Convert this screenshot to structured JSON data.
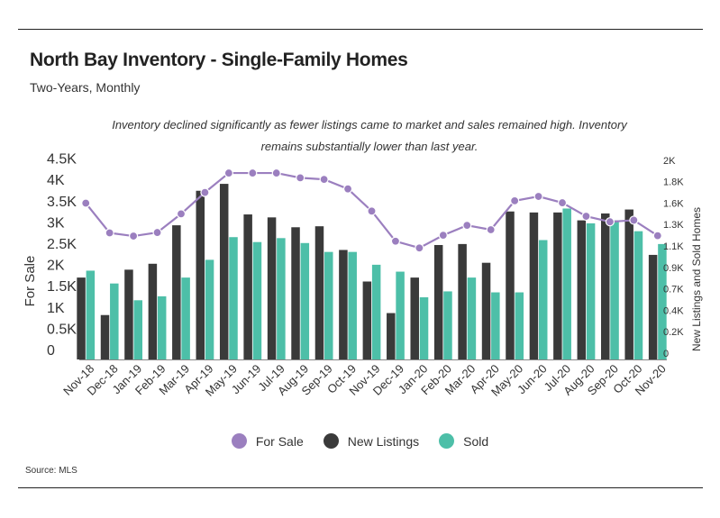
{
  "title": "North Bay Inventory - Single-Family Homes",
  "subtitle": "Two-Years, Monthly",
  "note": "Inventory declined significantly as fewer listings came to market and sales remained high. Inventory remains substantially lower than last year.",
  "source": "Source:  MLS",
  "colors": {
    "for_sale": "#9b7fbf",
    "new_listings": "#3a3a3a",
    "sold": "#4dbfa8"
  },
  "chart_data": {
    "type": "bar",
    "categories": [
      "Nov-18",
      "Dec-18",
      "Jan-19",
      "Feb-19",
      "Mar-19",
      "Apr-19",
      "May-19",
      "Jun-19",
      "Jul-19",
      "Aug-19",
      "Sep-19",
      "Oct-19",
      "Nov-19",
      "Dec-19",
      "Jan-20",
      "Feb-20",
      "Mar-20",
      "Apr-20",
      "May-20",
      "Jun-20",
      "Jul-20",
      "Aug-20",
      "Sep-20",
      "Oct-20",
      "Nov-20"
    ],
    "ylabel_left": "For Sale",
    "ylabel_right": "New Listings and Sold Homes",
    "yticks_left": [
      "0",
      "0.5K",
      "1K",
      "1.5K",
      "2K",
      "2.5K",
      "3K",
      "3.5K",
      "4K",
      "4.5K"
    ],
    "yticks_right": [
      "0",
      "0.2K",
      "0.4K",
      "0.7K",
      "0.9K",
      "1.1K",
      "1.3K",
      "1.6K",
      "1.8K",
      "2K"
    ],
    "ylim_left": [
      0,
      4500
    ],
    "ylim_right": [
      0,
      2000
    ],
    "legend_position": "bottom",
    "series": [
      {
        "name": "For Sale",
        "type": "line",
        "axis": "left",
        "values": [
          3670,
          2920,
          2840,
          2930,
          3400,
          3940,
          4430,
          4430,
          4430,
          4310,
          4270,
          4030,
          3470,
          2710,
          2540,
          2860,
          3110,
          3000,
          3730,
          3840,
          3680,
          3340,
          3200,
          3240,
          2850
        ]
      },
      {
        "name": "New Listings",
        "type": "bar",
        "axis": "right",
        "values": [
          830,
          450,
          910,
          970,
          1360,
          1710,
          1780,
          1470,
          1440,
          1340,
          1350,
          1110,
          790,
          470,
          830,
          1160,
          1170,
          980,
          1500,
          1490,
          1490,
          1410,
          1480,
          1520,
          1060
        ]
      },
      {
        "name": "Sold",
        "type": "bar",
        "axis": "right",
        "values": [
          900,
          770,
          600,
          640,
          830,
          1010,
          1240,
          1190,
          1230,
          1180,
          1090,
          1090,
          960,
          890,
          630,
          690,
          830,
          680,
          680,
          1210,
          1530,
          1380,
          1410,
          1300,
          1170
        ]
      }
    ]
  }
}
